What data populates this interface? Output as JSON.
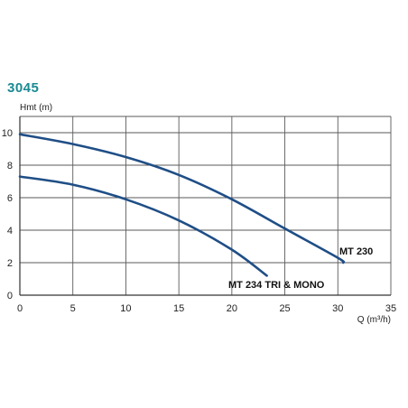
{
  "heading": "3045",
  "colors": {
    "heading": "#1a8a92",
    "curve": "#1f4e86",
    "grid": "#5a5a5a",
    "text": "#222222"
  },
  "chart_data": {
    "type": "line",
    "xlabel": "Q (m³/h)",
    "ylabel": "Hmt (m)",
    "xlim": [
      0,
      35
    ],
    "ylim": [
      0,
      11
    ],
    "xticks": [
      0,
      5,
      10,
      15,
      20,
      25,
      30,
      35
    ],
    "yticks": [
      0,
      2,
      4,
      6,
      8,
      10
    ],
    "grid": true,
    "series": [
      {
        "name": "MT 230",
        "x": [
          0,
          5,
          10,
          15,
          20,
          25,
          30,
          30.5
        ],
        "y": [
          9.9,
          9.3,
          8.5,
          7.4,
          5.9,
          4.1,
          2.3,
          2.0
        ]
      },
      {
        "name": "MT 234 TRI & MONO",
        "x": [
          0,
          5,
          10,
          15,
          20,
          23.3
        ],
        "y": [
          7.3,
          6.8,
          5.9,
          4.6,
          2.8,
          1.2
        ]
      }
    ]
  }
}
